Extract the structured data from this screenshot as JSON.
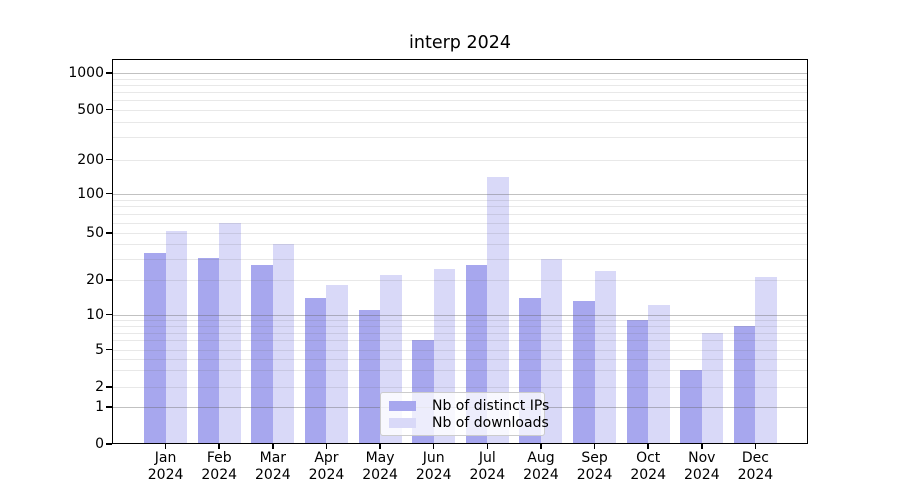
{
  "chart_data": {
    "type": "bar",
    "title": "interp 2024",
    "categories": [
      "Jan",
      "Feb",
      "Mar",
      "Apr",
      "May",
      "Jun",
      "Jul",
      "Aug",
      "Sep",
      "Oct",
      "Nov",
      "Dec"
    ],
    "category_year": "2024",
    "series": [
      {
        "name": "Nb of distinct IPs",
        "color": "#a7a7ee",
        "values": [
          34,
          31,
          27,
          14,
          11,
          6,
          27,
          14,
          13,
          9,
          3,
          8
        ]
      },
      {
        "name": "Nb of downloads",
        "color": "#d9d9f8",
        "values": [
          52,
          60,
          40,
          18,
          22,
          25,
          140,
          30,
          24,
          12,
          7,
          21
        ]
      }
    ],
    "xlabel": "",
    "ylabel": "",
    "yscale": "symlog",
    "ylim": [
      0,
      1300
    ],
    "y_ticks": [
      0,
      1,
      2,
      5,
      10,
      20,
      50,
      100,
      200,
      500,
      1000
    ],
    "grid": {
      "major_values": [
        1,
        10,
        100,
        1000
      ],
      "minor_factors": [
        2,
        3,
        4,
        5,
        6,
        7,
        8,
        9
      ],
      "major_color": "rgba(100,100,100,0.40)",
      "minor_color": "rgba(100,100,100,0.15)"
    },
    "legend": {
      "location": "lower center"
    }
  }
}
